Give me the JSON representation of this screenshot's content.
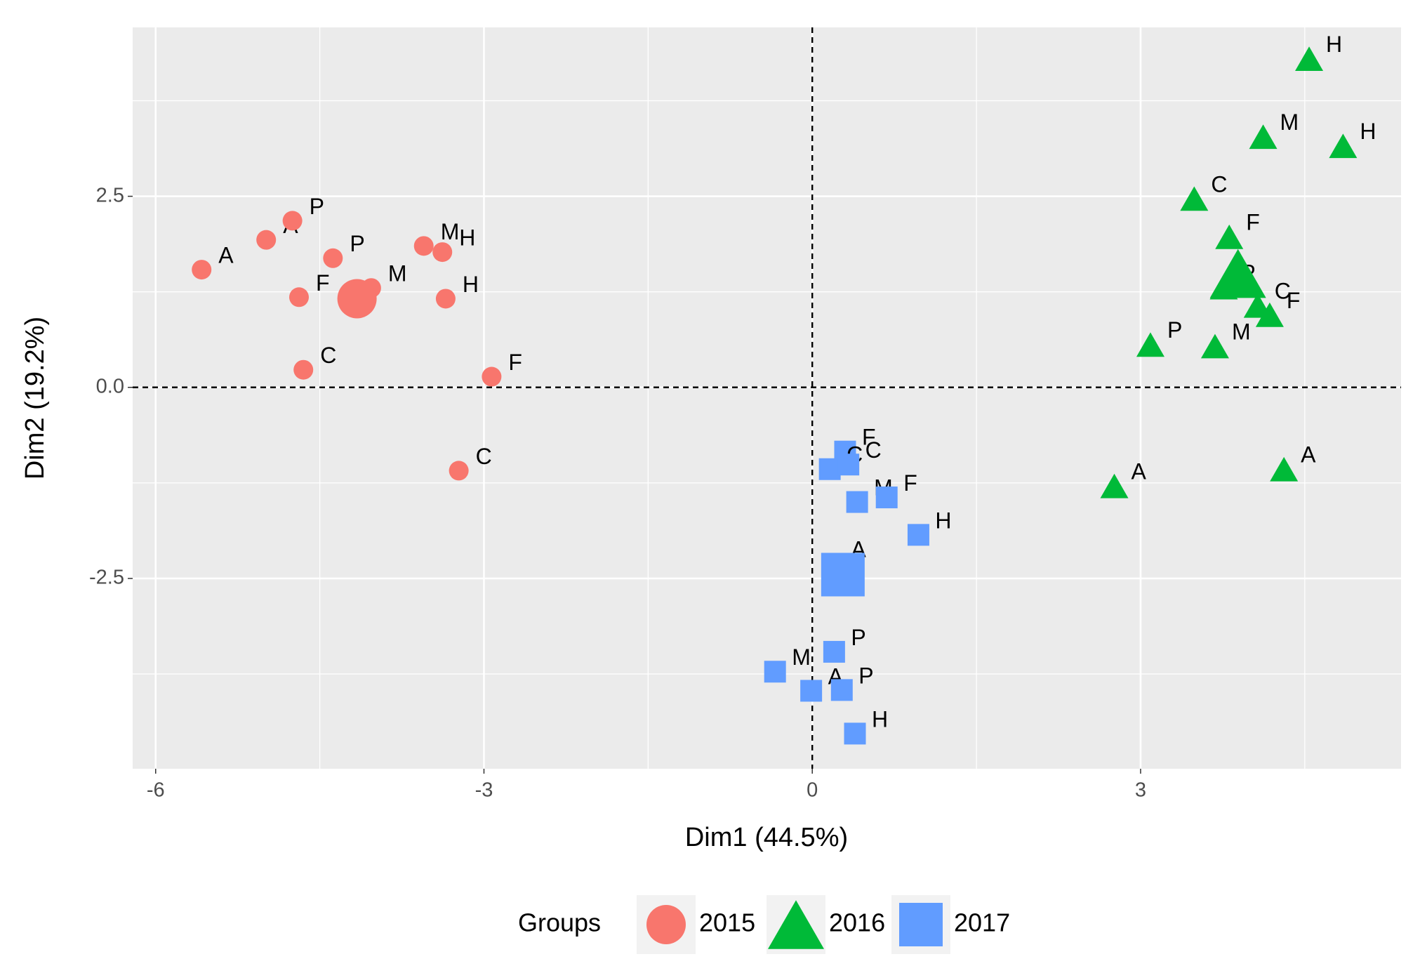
{
  "chart_data": {
    "type": "scatter",
    "x_label": "Dim1 (44.5%)",
    "y_label": "Dim2 (19.2%)",
    "xlim": [
      -6.21,
      5.38
    ],
    "ylim": [
      -4.99,
      4.71
    ],
    "xticks": [
      -6,
      -3,
      0,
      3
    ],
    "yticks": [
      -2.5,
      {
        "value": 0,
        "label": "0.0"
      },
      2.5
    ],
    "grid": true,
    "reference_lines": {
      "x": 0,
      "y": 0
    },
    "legend_title": "Groups",
    "legend_position": "bottom",
    "series": [
      {
        "name": "2015",
        "color": "#F8766D",
        "shape": "circle",
        "x": [
          -5.58,
          -4.99,
          -4.75,
          -4.38,
          -4.69,
          -4.65,
          -3.55,
          -3.38,
          -3.35,
          -2.93,
          -3.23,
          -4.03,
          -4.16
        ],
        "y": [
          1.54,
          1.93,
          2.18,
          1.69,
          1.18,
          0.23,
          1.85,
          1.77,
          1.16,
          0.14,
          -1.09,
          1.3,
          1.16
        ],
        "labels": [
          "A",
          "A",
          "P",
          "P",
          "F",
          "C",
          "M",
          "H",
          "H",
          "F",
          "C",
          "M",
          null
        ]
      },
      {
        "name": "2016",
        "color": "#00BA38",
        "shape": "triangle",
        "x": [
          4.54,
          4.12,
          4.85,
          3.49,
          3.81,
          3.76,
          4.07,
          4.18,
          3.09,
          3.68,
          2.76,
          4.31,
          3.89
        ],
        "y": [
          4.3,
          3.28,
          3.16,
          2.47,
          1.97,
          1.31,
          1.07,
          0.95,
          0.56,
          0.54,
          -1.29,
          -1.07,
          1.49
        ],
        "labels": [
          "H",
          "M",
          "H",
          "C",
          "F",
          "P",
          "C",
          "F",
          "P",
          "M",
          "A",
          "A",
          null
        ]
      },
      {
        "name": "2017",
        "color": "#619CFF",
        "shape": "square",
        "x": [
          0.3,
          0.16,
          0.33,
          0.41,
          0.68,
          0.97,
          0.2,
          0.2,
          -0.34,
          -0.01,
          0.27,
          0.39,
          0.28
        ],
        "y": [
          -0.84,
          -1.07,
          -1.01,
          -1.5,
          -1.44,
          -1.93,
          -2.31,
          -3.46,
          -3.72,
          -3.97,
          -3.96,
          -4.53,
          -2.45
        ],
        "labels": [
          "F",
          "C",
          "C",
          "M",
          "F",
          "H",
          "A",
          "P",
          "M",
          "A",
          "P",
          "H",
          null
        ]
      }
    ]
  }
}
